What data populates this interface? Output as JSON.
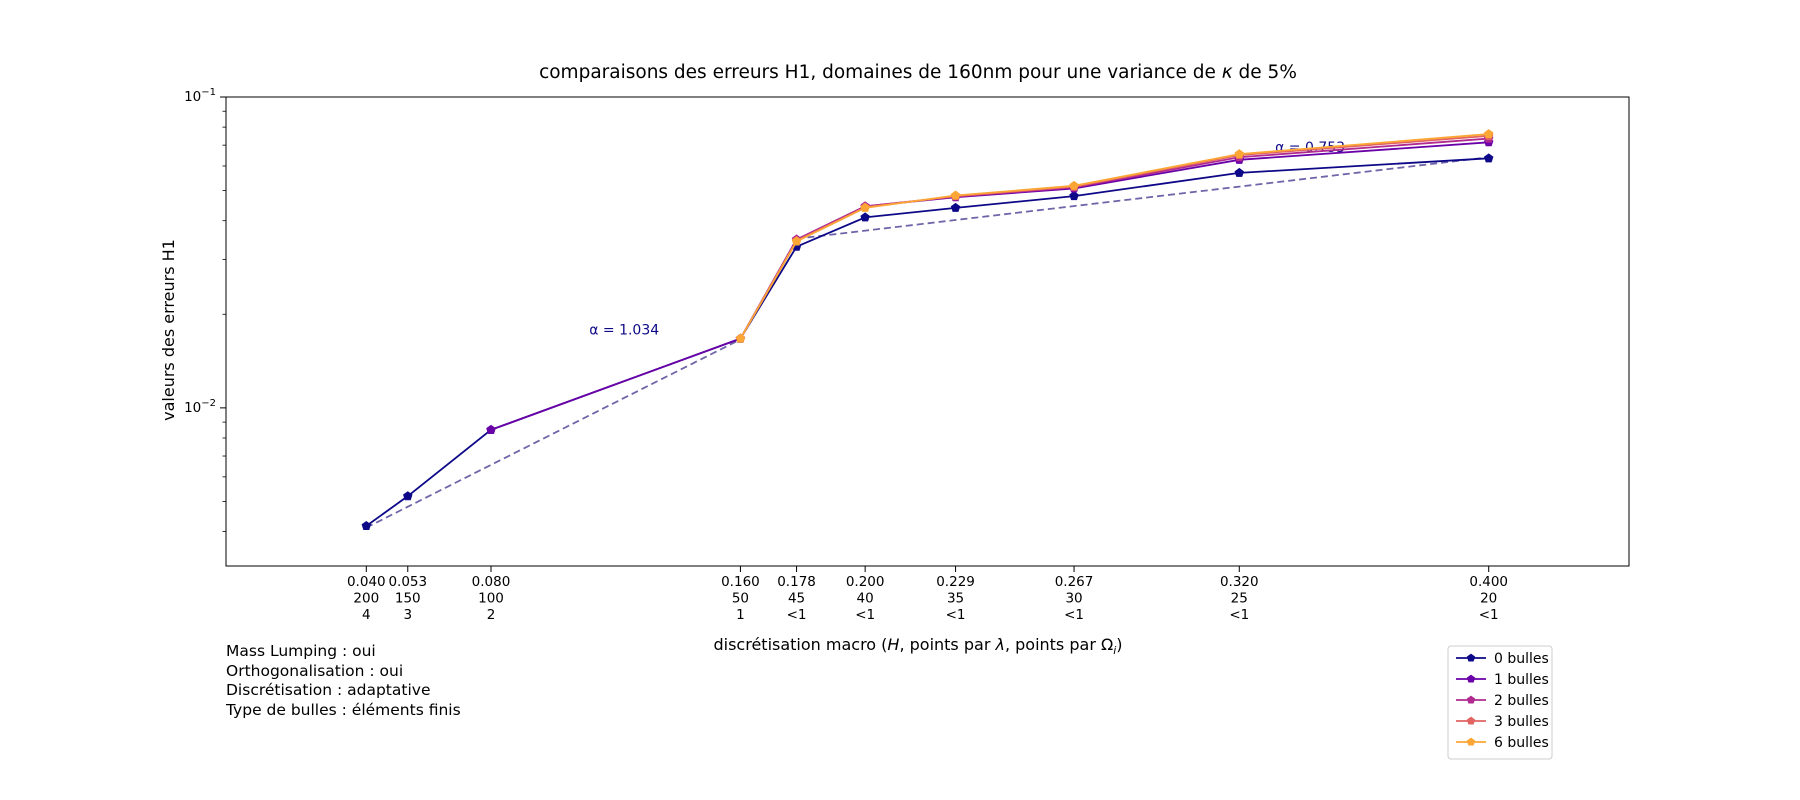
{
  "chart_data": {
    "type": "line",
    "title": "comparaisons des erreurs H1, domaines de 160nm pour une variance de κ de 5%",
    "title_parts": [
      "comparaisons des erreurs H1, domaines de 160nm pour une variance de ",
      "κ",
      " de 5%"
    ],
    "ylabel": "valeurs des erreurs H1",
    "xlabel_parts": [
      "discrétisation macro (",
      "H",
      ", points par ",
      "λ",
      ", points par Ω",
      "i",
      ")"
    ],
    "yscale": "log",
    "ylim": [
      0.0031,
      0.1
    ],
    "yticks": [
      {
        "base": "10",
        "exp": "−1",
        "value": 0.1
      },
      {
        "base": "10",
        "exp": "−2",
        "value": 0.01
      }
    ],
    "xlim": [
      -0.005,
      0.445
    ],
    "x": [
      0.04,
      0.0533,
      0.08,
      0.16,
      0.178,
      0.2,
      0.229,
      0.267,
      0.32,
      0.4
    ],
    "tick_labels": [
      [
        "0.040",
        "200",
        "4"
      ],
      [
        "0.053",
        "150",
        "3"
      ],
      [
        "0.080",
        "100",
        "2"
      ],
      [
        "0.160",
        "50",
        "1"
      ],
      [
        "0.178",
        "45",
        "<1"
      ],
      [
        "0.200",
        "40",
        "<1"
      ],
      [
        "0.229",
        "35",
        "<1"
      ],
      [
        "0.267",
        "30",
        "<1"
      ],
      [
        "0.320",
        "25",
        "<1"
      ],
      [
        "0.400",
        "20",
        "<1"
      ]
    ],
    "series": [
      {
        "name": "0 bulles",
        "color": "#0d0887",
        "values": [
          0.00417,
          0.0052,
          0.0085,
          0.0167,
          0.033,
          0.041,
          0.044,
          0.048,
          0.057,
          0.0635
        ]
      },
      {
        "name": "1 bulles",
        "color": "#6a00a8",
        "values": [
          null,
          null,
          0.0085,
          0.0167,
          0.0348,
          0.0445,
          0.0476,
          0.0508,
          0.0628,
          0.0715
        ]
      },
      {
        "name": "2 bulles",
        "color": "#b12a90",
        "values": [
          null,
          null,
          null,
          0.0167,
          0.0348,
          0.0445,
          0.0478,
          0.0512,
          0.064,
          0.0735
        ]
      },
      {
        "name": "3 bulles",
        "color": "#e16462",
        "values": [
          null,
          null,
          null,
          0.0167,
          0.0345,
          0.0442,
          0.048,
          0.0515,
          0.065,
          0.075
        ]
      },
      {
        "name": "6 bulles",
        "color": "#fca636",
        "values": [
          null,
          null,
          null,
          0.0167,
          0.0343,
          0.044,
          0.0482,
          0.0518,
          0.0655,
          0.076
        ]
      }
    ],
    "fits": [
      {
        "alpha_label": "α = 1.034",
        "x_range": [
          0.04,
          0.16
        ],
        "y_range": [
          0.00412,
          0.0166
        ],
        "color": "#7065a8",
        "label_color": "#0d0887",
        "label_at": [
          0.1115,
          0.0172
        ]
      },
      {
        "alpha_label": "α = 0.753",
        "x_range": [
          0.178,
          0.4
        ],
        "y_range": [
          0.035,
          0.064
        ],
        "color": "#7065a8",
        "label_color": "#0d0887",
        "label_at": [
          0.3315,
          0.0665
        ]
      }
    ],
    "legend": {
      "placement": "bottom-right, below axes",
      "entries": [
        "0 bulles",
        "1 bulles",
        "2 bulles",
        "3 bulles",
        "6 bulles"
      ]
    },
    "grid": false
  },
  "notes": [
    "Mass Lumping : oui",
    "Orthogonalisation : oui",
    "Discrétisation : adaptative",
    "Type de bulles : éléments finis"
  ]
}
